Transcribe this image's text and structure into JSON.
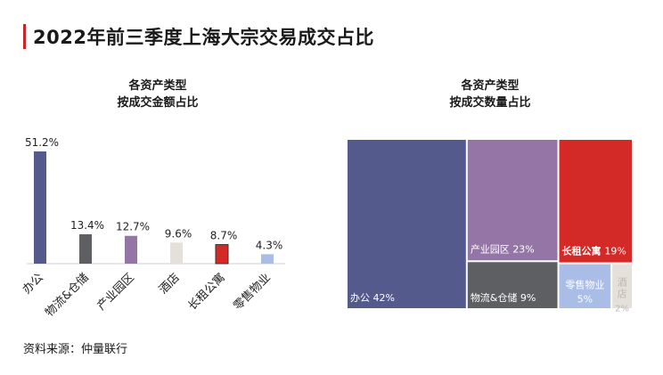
{
  "title": "2022年前三季度上海大宗交易成交占比",
  "source": "资料来源：仲量联行",
  "chart_data": [
    {
      "type": "bar",
      "title_lines": [
        "各资产类型",
        "按成交金额占比"
      ],
      "categories": [
        "办公",
        "物流&仓储",
        "产业园区",
        "酒店",
        "长租公寓",
        "零售物业"
      ],
      "values": [
        51.2,
        13.4,
        12.7,
        9.6,
        8.7,
        4.3
      ],
      "value_labels": [
        "51.2%",
        "13.4%",
        "12.7%",
        "9.6%",
        "8.7%",
        "4.3%"
      ],
      "colors": [
        "#555a8d",
        "#5e5f62",
        "#9475a5",
        "#e5e1da",
        "#d42a27",
        "#a9bde6"
      ],
      "ylim": [
        0,
        51.2
      ]
    },
    {
      "type": "treemap",
      "title_lines": [
        "各资产类型",
        "按成交数量占比"
      ],
      "items": [
        {
          "name": "办公",
          "value": 42,
          "label": "42%",
          "color": "#555a8d"
        },
        {
          "name": "产业园区",
          "value": 23,
          "label": "23%",
          "color": "#9475a5"
        },
        {
          "name": "长租公寓",
          "value": 19,
          "label": "19%",
          "color": "#d42a27"
        },
        {
          "name": "物流&仓储",
          "value": 9,
          "label": "9%",
          "color": "#5e5f62"
        },
        {
          "name": "零售物业",
          "value": 5,
          "label": "5%",
          "color": "#a9bde6"
        },
        {
          "name": "酒店",
          "value": 2,
          "label": "2%",
          "color": "#e5e1da"
        }
      ]
    }
  ]
}
